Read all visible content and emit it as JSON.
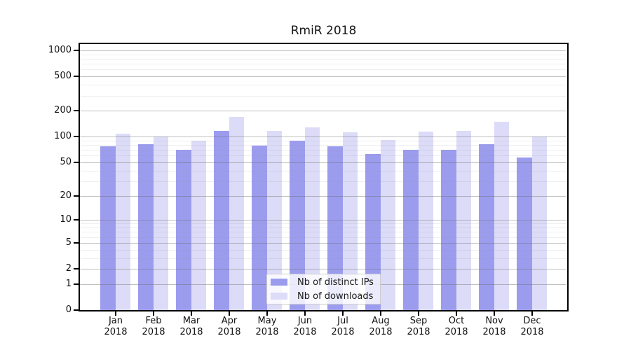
{
  "chart_data": {
    "type": "bar",
    "title": "RmiR 2018",
    "categories": [
      "Jan 2018",
      "Feb 2018",
      "Mar 2018",
      "Apr 2018",
      "May 2018",
      "Jun 2018",
      "Jul 2018",
      "Aug 2018",
      "Sep 2018",
      "Oct 2018",
      "Nov 2018",
      "Dec 2018"
    ],
    "series": [
      {
        "name": "Nb of distinct IPs",
        "color": "#9c9cee",
        "values": [
          77,
          81,
          70,
          116,
          79,
          90,
          77,
          63,
          70,
          70,
          82,
          57
        ]
      },
      {
        "name": "Nb of downloads",
        "color": "#dcdcf8",
        "values": [
          108,
          101,
          90,
          170,
          117,
          127,
          112,
          92,
          114,
          116,
          150,
          100
        ]
      }
    ],
    "y_scale": "symlog",
    "y_ticks": [
      0,
      1,
      2,
      5,
      10,
      20,
      50,
      100,
      200,
      500,
      1000
    ],
    "ylim": [
      0,
      1000
    ],
    "xlabel": "",
    "ylabel": "",
    "grid": true,
    "legend_position": "bottom-center-inside",
    "colors": {
      "axis": "#000000",
      "major_grid": "#c4c4c4",
      "minor_grid": "#ececec",
      "background": "#ffffff"
    }
  }
}
